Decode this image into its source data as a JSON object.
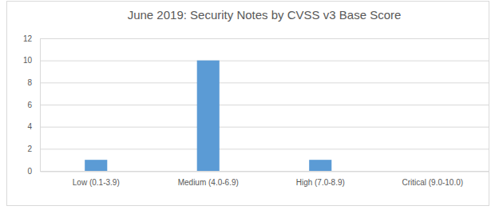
{
  "chart_data": {
    "type": "bar",
    "title": "June 2019: Security Notes by CVSS v3 Base Score",
    "categories": [
      "Low (0.1-3.9)",
      "Medium (4.0-6.9)",
      "High (7.0-8.9)",
      "Critical (9.0-10.0)"
    ],
    "values": [
      1,
      10,
      1,
      0
    ],
    "color": "#5b9bd5",
    "ylim": [
      0,
      12
    ],
    "yticks": [
      0,
      2,
      4,
      6,
      8,
      10,
      12
    ],
    "grid": true
  }
}
